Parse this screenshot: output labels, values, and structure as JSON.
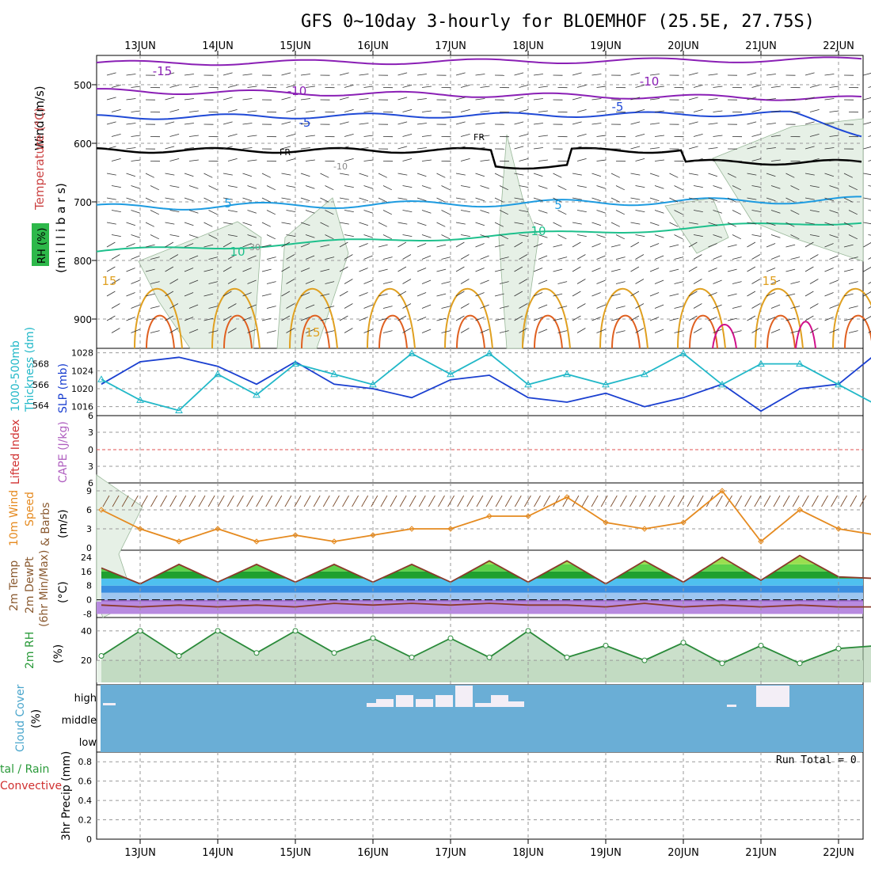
{
  "title": "GFS 0~10day 3-hourly for BLOEMHOF (25.5E, 27.75S)",
  "dates": [
    "13JUN",
    "14JUN",
    "15JUN",
    "16JUN",
    "17JUN",
    "18JUN",
    "19JUN",
    "20JUN",
    "21JUN",
    "22JUN"
  ],
  "colors": {
    "temp_purple": "#8a1fb5",
    "temp_blue": "#1f49d6",
    "temp_cyan": "#1e9be0",
    "temp_green": "#1ec08c",
    "temp_orange": "#e0a020",
    "temp_red_orange": "#e06020",
    "temp_magenta": "#d0108a",
    "rh_fill": "#e6f0e6",
    "slp_line": "#1a3fd0",
    "thickness_line": "#22b8c8",
    "wind_speed": "#e58a1f",
    "cloud_fill": "#6aaed6",
    "cloud_clear": "#f3eef6",
    "precip_grid": "#aaaaaa"
  },
  "panels": {
    "upper": {
      "ylabel_wind": "Wind (m/s)",
      "ylabel_temp": "Temperature (°C)",
      "ylabel_rh": "RH (%)",
      "ylabel_mb": "(m i l l i b a r s)",
      "yticks": [
        500,
        600,
        700,
        800,
        900
      ],
      "contour_labels": [
        "-15",
        "-10",
        "-10",
        "-5",
        "-5",
        "FR",
        "FR",
        "-10",
        "5",
        "5",
        "10",
        "10",
        "-30",
        "15",
        "15",
        "15"
      ]
    },
    "slp": {
      "ylabel_a": "1000-500mb",
      "ylabel_b": "Thickness (dm)",
      "ylabel_c": "SLP (mb)",
      "left_ticks": [
        "568",
        "566",
        "564"
      ],
      "right_ticks": [
        "1028",
        "1024",
        "1020",
        "1016"
      ]
    },
    "cape": {
      "ylabel_a": "Lifted Index",
      "ylabel_b": "CAPE (J/kg)",
      "ticks": [
        "6",
        "3",
        "0",
        "3",
        "6"
      ]
    },
    "wind10": {
      "ylabel_a": "10m Wind",
      "ylabel_b": "Speed",
      "ylabel_c": "& Barbs",
      "ylabel_d": "(m/s)",
      "ticks": [
        "9",
        "6",
        "3",
        "0"
      ]
    },
    "temp2m": {
      "ylabel_a": "2m Temp",
      "ylabel_b": "2m DewPt",
      "ylabel_c": "(6hr Min/Max)",
      "ylabel_d": "(°C)",
      "ticks": [
        "24",
        "16",
        "8",
        "0",
        "-8"
      ]
    },
    "rh2m": {
      "ylabel_a": "2m RH",
      "ylabel_b": "(%)",
      "ticks": [
        "40",
        "20"
      ]
    },
    "cloud": {
      "ylabel_a": "Cloud Cover",
      "ylabel_b": "(%)",
      "levels": [
        "high",
        "middle",
        "low"
      ]
    },
    "precip": {
      "ylabel_a": "tal / Rain",
      "ylabel_b": "Convective",
      "ylabel_c": "3hr Precip (mm)",
      "run_total": "Run Total = 0",
      "ticks": [
        "0.8",
        "0.6",
        "0.4",
        "0.2",
        "0"
      ]
    }
  },
  "chart_data": [
    {
      "type": "line",
      "panel": "SLP and 1000-500mb thickness",
      "x": [
        "12JUN12",
        "13JUN00",
        "13JUN12",
        "14JUN00",
        "14JUN12",
        "15JUN00",
        "15JUN12",
        "16JUN00",
        "16JUN12",
        "17JUN00",
        "17JUN12",
        "18JUN00",
        "18JUN12",
        "19JUN00",
        "19JUN12",
        "20JUN00",
        "20JUN12",
        "21JUN00",
        "21JUN12",
        "22JUN00",
        "22JUN06"
      ],
      "series": [
        {
          "name": "SLP (mb)",
          "values": [
            1021,
            1026,
            1027,
            1025,
            1021,
            1026,
            1021,
            1020,
            1018,
            1022,
            1023,
            1018,
            1017,
            1019,
            1016,
            1018,
            1021,
            1015,
            1020,
            1021,
            1028
          ]
        },
        {
          "name": "1000-500mb Thickness (dm)",
          "values": [
            566.5,
            564.5,
            563.5,
            567,
            565,
            568,
            567,
            566,
            569,
            567,
            569,
            566,
            567,
            566,
            567,
            569,
            566,
            568,
            568,
            566,
            564
          ]
        }
      ],
      "ylim_left": [
        563,
        569.5
      ],
      "ylim_right": [
        1014,
        1029
      ]
    },
    {
      "type": "line",
      "panel": "10m Wind Speed",
      "x": [
        "12JUN12",
        "13JUN00",
        "13JUN12",
        "14JUN00",
        "14JUN12",
        "15JUN00",
        "15JUN12",
        "16JUN00",
        "16JUN12",
        "17JUN00",
        "17JUN12",
        "18JUN00",
        "18JUN12",
        "19JUN00",
        "19JUN12",
        "20JUN00",
        "20JUN12",
        "21JUN00",
        "21JUN12",
        "22JUN00",
        "22JUN06"
      ],
      "series": [
        {
          "name": "10m Wind Speed (m/s)",
          "values": [
            6,
            3,
            1,
            3,
            1,
            2,
            1,
            2,
            3,
            3,
            5,
            5,
            8,
            4,
            3,
            4,
            9,
            1,
            6,
            3,
            2
          ]
        }
      ],
      "ylim": [
        0,
        10
      ]
    },
    {
      "type": "area",
      "panel": "2m Temp",
      "x": [
        "12JUN12",
        "13JUN00",
        "13JUN12",
        "14JUN00",
        "14JUN12",
        "15JUN00",
        "15JUN12",
        "16JUN00",
        "16JUN12",
        "17JUN00",
        "17JUN12",
        "18JUN00",
        "18JUN12",
        "19JUN00",
        "19JUN12",
        "20JUN00",
        "20JUN12",
        "21JUN00",
        "21JUN12",
        "22JUN00",
        "22JUN06"
      ],
      "series": [
        {
          "name": "2m Temp (°C)",
          "values": [
            18,
            9,
            20,
            10,
            20,
            10,
            20,
            10,
            20,
            10,
            22,
            10,
            22,
            9,
            22,
            10,
            24,
            11,
            25,
            13,
            12
          ]
        },
        {
          "name": "2m DewPt (°C)",
          "values": [
            -3,
            -4,
            -3,
            -4,
            -3,
            -4,
            -2,
            -3,
            -2,
            -3,
            -2,
            -3,
            -3,
            -4,
            -2,
            -4,
            -3,
            -4,
            -3,
            -4,
            -4
          ]
        }
      ],
      "ylim": [
        -10,
        28
      ]
    },
    {
      "type": "area",
      "panel": "2m RH",
      "x": [
        "12JUN12",
        "13JUN00",
        "13JUN12",
        "14JUN00",
        "14JUN12",
        "15JUN00",
        "15JUN12",
        "16JUN00",
        "16JUN12",
        "17JUN00",
        "17JUN12",
        "18JUN00",
        "18JUN12",
        "19JUN00",
        "19JUN12",
        "20JUN00",
        "20JUN12",
        "21JUN00",
        "21JUN12",
        "22JUN00",
        "22JUN06"
      ],
      "series": [
        {
          "name": "2m RH (%)",
          "values": [
            23,
            40,
            23,
            40,
            25,
            40,
            25,
            35,
            22,
            35,
            22,
            40,
            22,
            30,
            20,
            32,
            18,
            30,
            18,
            28,
            30
          ]
        }
      ],
      "ylim": [
        5,
        48
      ]
    },
    {
      "type": "bar",
      "panel": "3hr Precip",
      "series": [
        {
          "name": "3hr Precip (mm)",
          "values": []
        }
      ],
      "ylim": [
        0,
        0.9
      ]
    }
  ]
}
